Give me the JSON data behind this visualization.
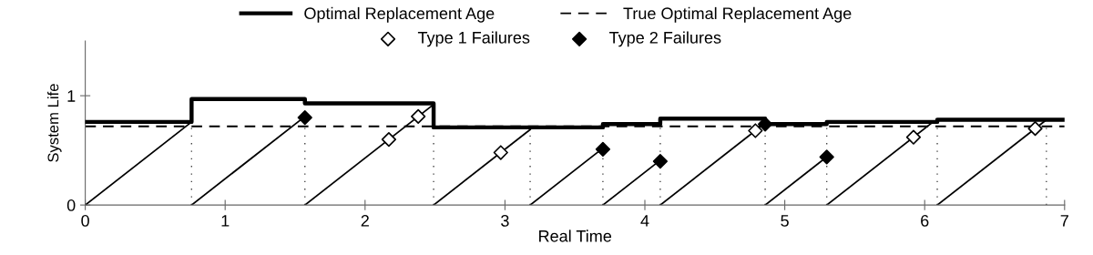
{
  "chart_data": {
    "type": "line",
    "xlabel": "Real Time",
    "ylabel": "System Life",
    "xlim": [
      0,
      7
    ],
    "xticks": [
      0,
      1,
      2,
      3,
      4,
      5,
      6,
      7
    ],
    "ylim": [
      0,
      1.5
    ],
    "yticks": [
      0,
      1
    ],
    "grid": false,
    "legend": "top",
    "series": [
      {
        "name": "Optimal Replacement Age",
        "type": "step",
        "color": "#000000",
        "line_style": "solid",
        "x": [
          0,
          0.76,
          1.57,
          2.49,
          3.7,
          4.11,
          4.86,
          5.3,
          6.09,
          7
        ],
        "values": [
          0.76,
          0.97,
          0.93,
          0.71,
          0.74,
          0.79,
          0.74,
          0.76,
          0.78,
          0.78
        ]
      },
      {
        "name": "True Optimal Replacement Age",
        "color": "#000000",
        "line_style": "dashed",
        "x": [
          0,
          7
        ],
        "values": [
          0.72,
          0.72
        ]
      },
      {
        "color": "#000000",
        "line_style": "solid",
        "x": [
          0,
          0.76
        ],
        "values": [
          0,
          0.76
        ]
      },
      {
        "color": "#000000",
        "line_style": "solid",
        "x": [
          0.76,
          1.57
        ],
        "values": [
          0,
          0.81
        ]
      },
      {
        "color": "#000000",
        "line_style": "solid",
        "x": [
          1.57,
          2.49
        ],
        "values": [
          0,
          0.92
        ]
      },
      {
        "color": "#000000",
        "line_style": "solid",
        "x": [
          2.49,
          3.18
        ],
        "values": [
          0,
          0.69
        ]
      },
      {
        "color": "#000000",
        "line_style": "solid",
        "x": [
          3.18,
          3.7
        ],
        "values": [
          0,
          0.52
        ]
      },
      {
        "color": "#000000",
        "line_style": "solid",
        "x": [
          3.7,
          4.11
        ],
        "values": [
          0,
          0.41
        ]
      },
      {
        "color": "#000000",
        "line_style": "solid",
        "x": [
          4.11,
          4.86
        ],
        "values": [
          0,
          0.75
        ]
      },
      {
        "color": "#000000",
        "line_style": "solid",
        "x": [
          4.86,
          5.3
        ],
        "values": [
          0,
          0.44
        ]
      },
      {
        "color": "#000000",
        "line_style": "solid",
        "x": [
          5.3,
          6.06
        ],
        "values": [
          0,
          0.76
        ]
      },
      {
        "color": "#000000",
        "line_style": "solid",
        "x": [
          6.09,
          6.87
        ],
        "values": [
          0,
          0.78
        ]
      },
      {
        "name": "Type 1 Failures",
        "type": "scatter",
        "marker": "diamond",
        "color": "#ffffff",
        "x": [
          2.17,
          2.38,
          2.97,
          4.79,
          5.92,
          6.79
        ],
        "values": [
          0.6,
          0.81,
          0.48,
          0.68,
          0.62,
          0.7
        ]
      },
      {
        "name": "Type 2 Failures",
        "type": "scatter",
        "marker": "diamond",
        "color": "#000000",
        "x": [
          1.57,
          3.7,
          4.11,
          4.86,
          5.3
        ],
        "values": [
          0.8,
          0.51,
          0.4,
          0.74,
          0.44
        ]
      }
    ],
    "ref_lines": [
      {
        "axis": "x",
        "value": 0.76,
        "line_style": "dotted",
        "color": "#444444"
      },
      {
        "axis": "x",
        "value": 1.57,
        "line_style": "dotted",
        "color": "#444444"
      },
      {
        "axis": "x",
        "value": 2.49,
        "line_style": "dotted",
        "color": "#444444"
      },
      {
        "axis": "x",
        "value": 3.18,
        "line_style": "dotted",
        "color": "#444444"
      },
      {
        "axis": "x",
        "value": 3.7,
        "line_style": "dotted",
        "color": "#444444"
      },
      {
        "axis": "x",
        "value": 4.11,
        "line_style": "dotted",
        "color": "#444444"
      },
      {
        "axis": "x",
        "value": 4.86,
        "line_style": "dotted",
        "color": "#444444"
      },
      {
        "axis": "x",
        "value": 5.3,
        "line_style": "dotted",
        "color": "#444444"
      },
      {
        "axis": "x",
        "value": 6.09,
        "line_style": "dotted",
        "color": "#444444"
      },
      {
        "axis": "x",
        "value": 6.87,
        "line_style": "dotted",
        "color": "#444444"
      }
    ]
  }
}
